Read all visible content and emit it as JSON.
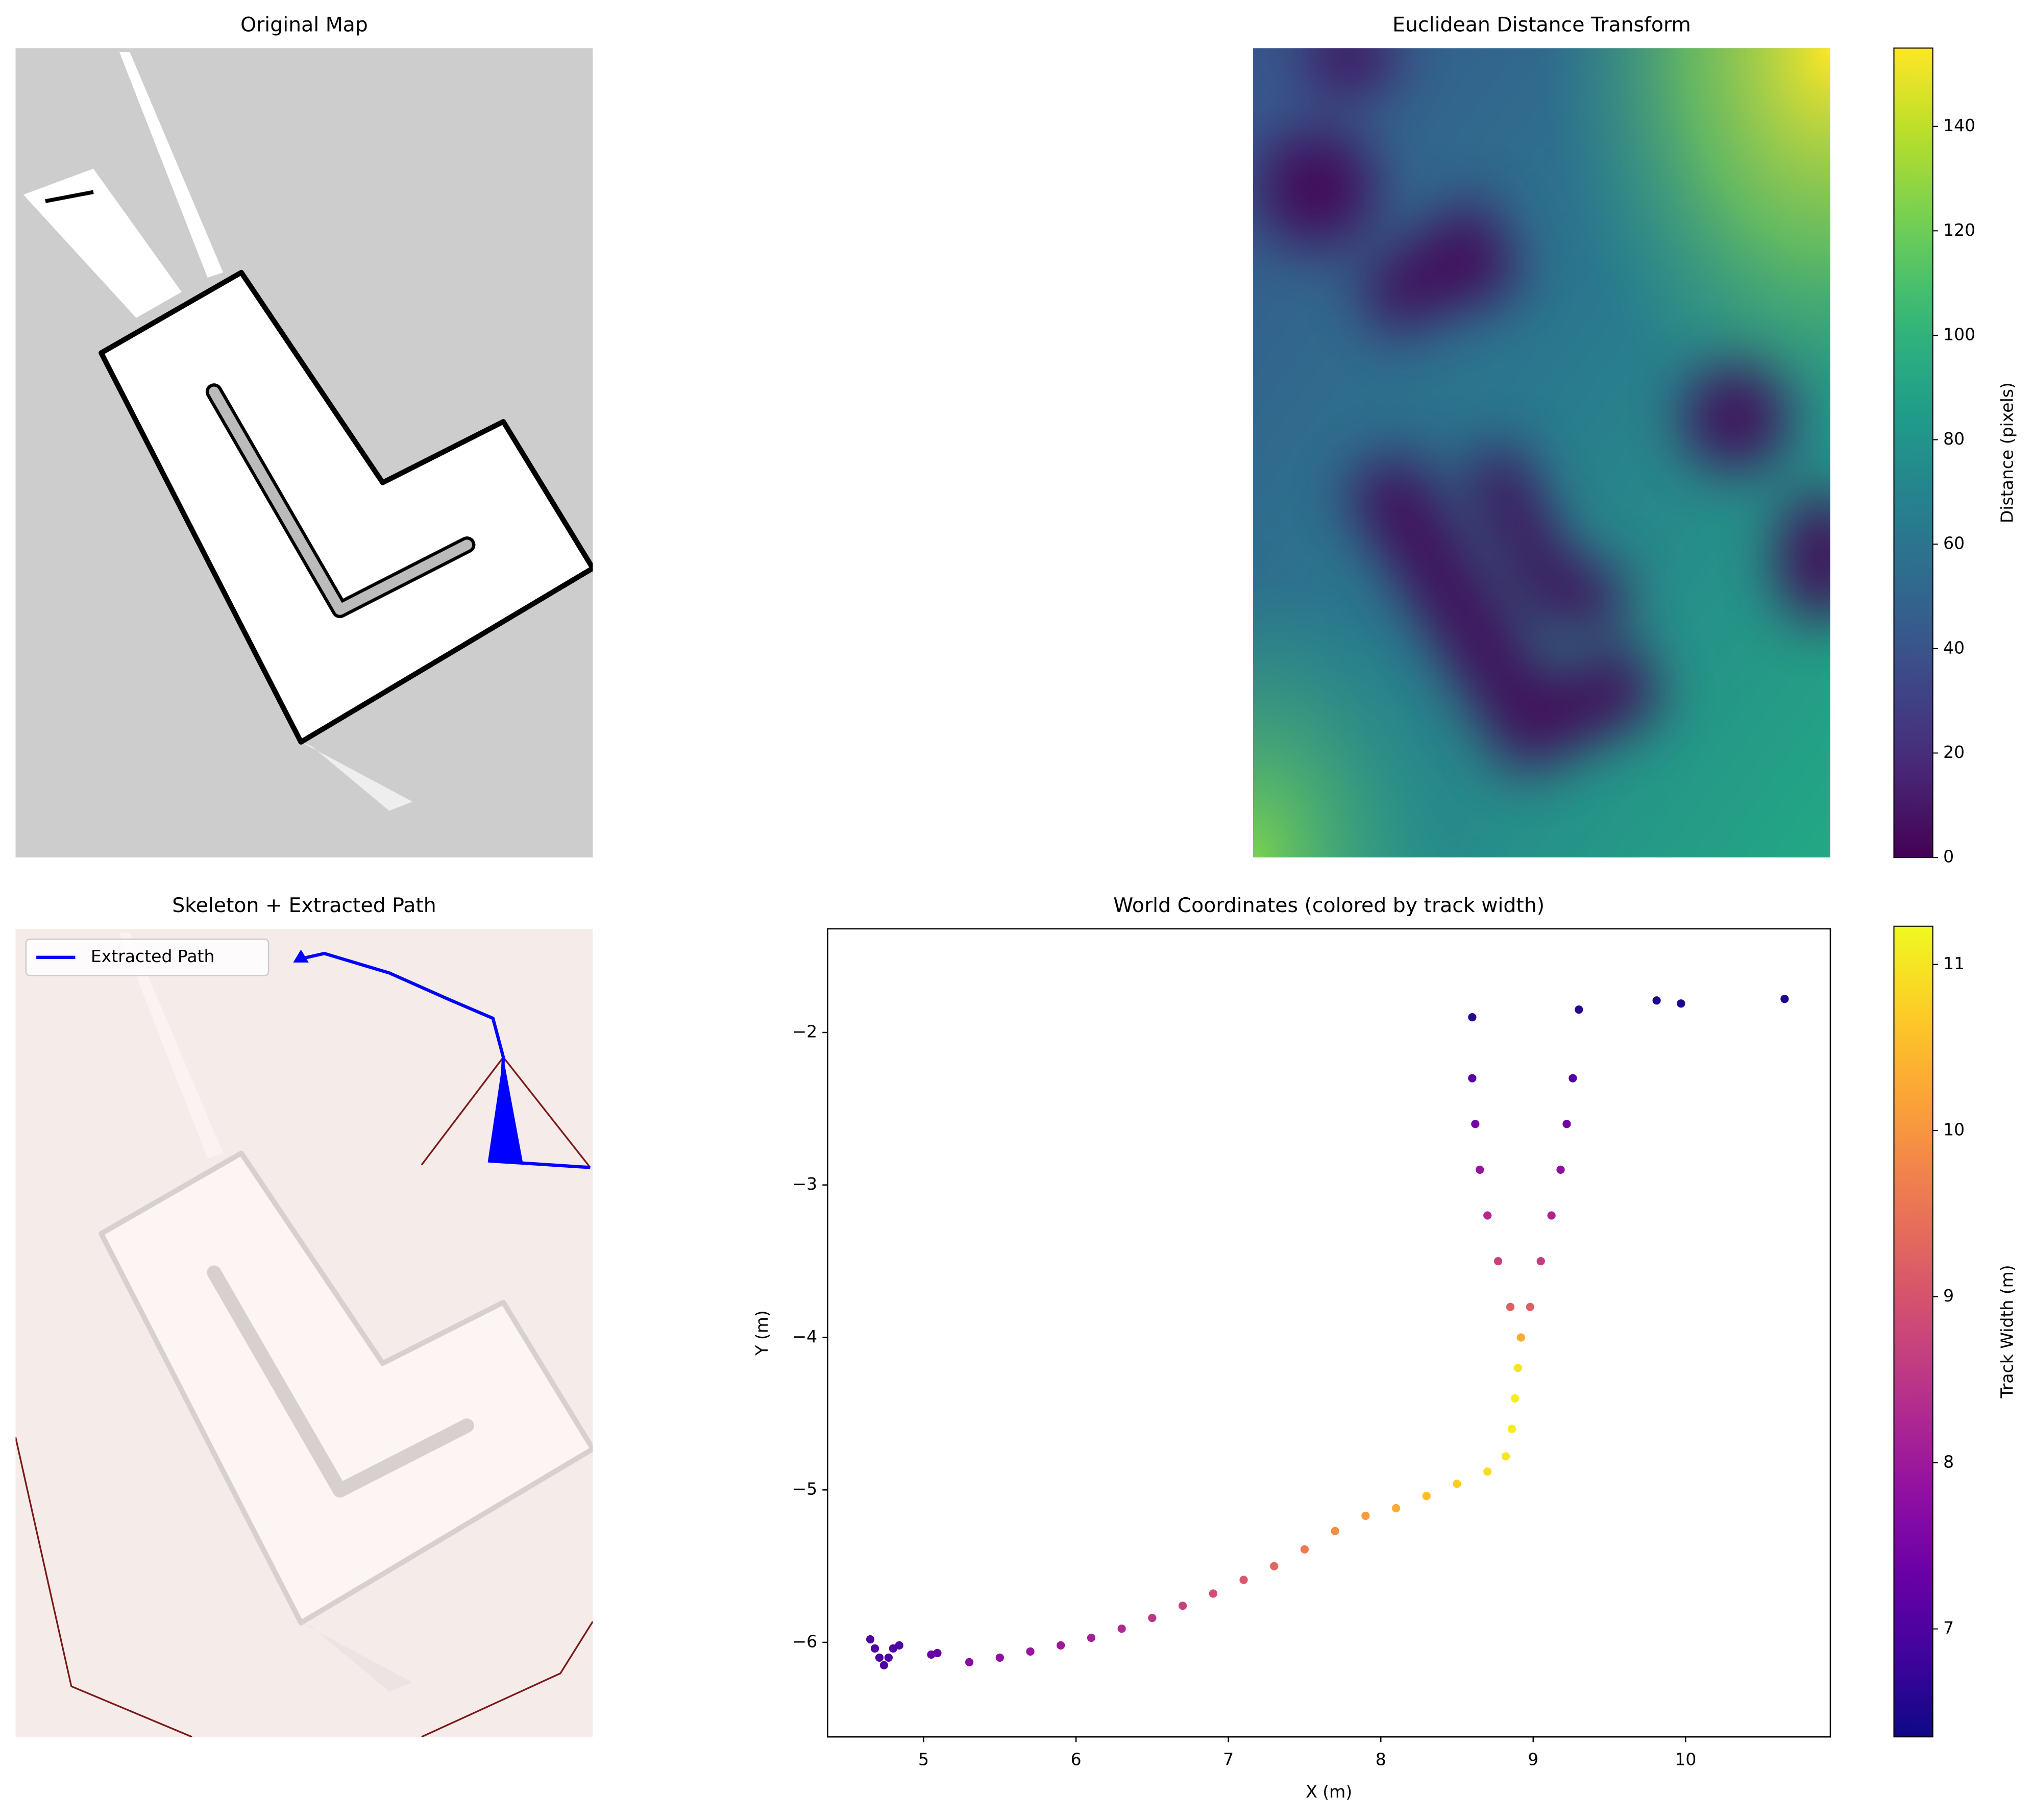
{
  "chart_data": [
    {
      "type": "image",
      "title": "Original Map"
    },
    {
      "type": "image",
      "title": "Euclidean Distance Transform",
      "colorbar": {
        "label": "Distance (pixels)",
        "cmap": "viridis",
        "lim": [
          0,
          155
        ],
        "ticks": [
          0,
          20,
          40,
          60,
          80,
          100,
          120,
          140
        ]
      }
    },
    {
      "type": "image",
      "title": "Skeleton + Extracted Path",
      "legend": "upper left",
      "series": [
        {
          "name": "Extracted Path",
          "color": "#0000ff"
        }
      ]
    },
    {
      "type": "scatter",
      "title": "World Coordinates (colored by track width)",
      "xlabel": "X (m)",
      "ylabel": "Y (m)",
      "x": [
        4.65,
        4.68,
        4.71,
        4.74,
        4.77,
        4.8,
        4.84,
        5.05,
        5.09,
        5.3,
        5.5,
        5.7,
        5.9,
        6.1,
        6.3,
        6.5,
        6.7,
        6.9,
        7.1,
        7.3,
        7.5,
        7.7,
        7.9,
        8.1,
        8.3,
        8.5,
        8.7,
        8.82,
        8.86,
        8.88,
        8.9,
        8.92,
        8.85,
        8.77,
        8.7,
        8.65,
        8.62,
        8.6,
        8.6,
        8.98,
        9.05,
        9.12,
        9.18,
        9.22,
        9.26,
        9.3,
        9.81,
        9.97,
        10.65
      ],
      "values": [
        -5.98,
        -6.04,
        -6.1,
        -6.15,
        -6.1,
        -6.04,
        -6.02,
        -6.08,
        -6.07,
        -6.13,
        -6.1,
        -6.06,
        -6.02,
        -5.97,
        -5.91,
        -5.84,
        -5.76,
        -5.68,
        -5.59,
        -5.5,
        -5.39,
        -5.27,
        -5.17,
        -5.12,
        -5.04,
        -4.96,
        -4.88,
        -4.78,
        -4.6,
        -4.4,
        -4.2,
        -4.0,
        -3.8,
        -3.5,
        -3.2,
        -2.9,
        -2.6,
        -2.3,
        -1.9,
        -3.8,
        -3.5,
        -3.2,
        -2.9,
        -2.6,
        -2.3,
        -1.85,
        -1.79,
        -1.81,
        -1.78
      ],
      "track_width": [
        7.0,
        7.0,
        7.0,
        7.0,
        7.0,
        7.0,
        7.0,
        7.3,
        7.3,
        7.7,
        7.8,
        7.9,
        8.0,
        8.1,
        8.3,
        8.5,
        8.7,
        8.9,
        9.1,
        9.3,
        9.6,
        9.9,
        10.1,
        10.3,
        10.5,
        10.7,
        10.9,
        11.0,
        11.1,
        11.1,
        11.0,
        10.3,
        9.2,
        8.7,
        8.3,
        7.9,
        7.5,
        7.1,
        6.6,
        9.2,
        8.6,
        8.2,
        7.8,
        7.4,
        7.0,
        6.6,
        6.5,
        6.5,
        6.5
      ],
      "xlim": [
        4.37,
        10.95
      ],
      "ylim": [
        -6.62,
        -1.32
      ],
      "xticks": [
        5,
        6,
        7,
        8,
        9,
        10
      ],
      "yticks": [
        {
          "value": -2,
          "label": "−2"
        },
        {
          "value": -3,
          "label": "−3"
        },
        {
          "value": -4,
          "label": "−4"
        },
        {
          "value": -5,
          "label": "−5"
        },
        {
          "value": -6,
          "label": "−6"
        }
      ],
      "colorbar": {
        "label": "Track Width (m)",
        "cmap": "plasma",
        "lim": [
          6.35,
          11.23
        ],
        "ticks": [
          7,
          8,
          9,
          10,
          11
        ]
      }
    }
  ]
}
